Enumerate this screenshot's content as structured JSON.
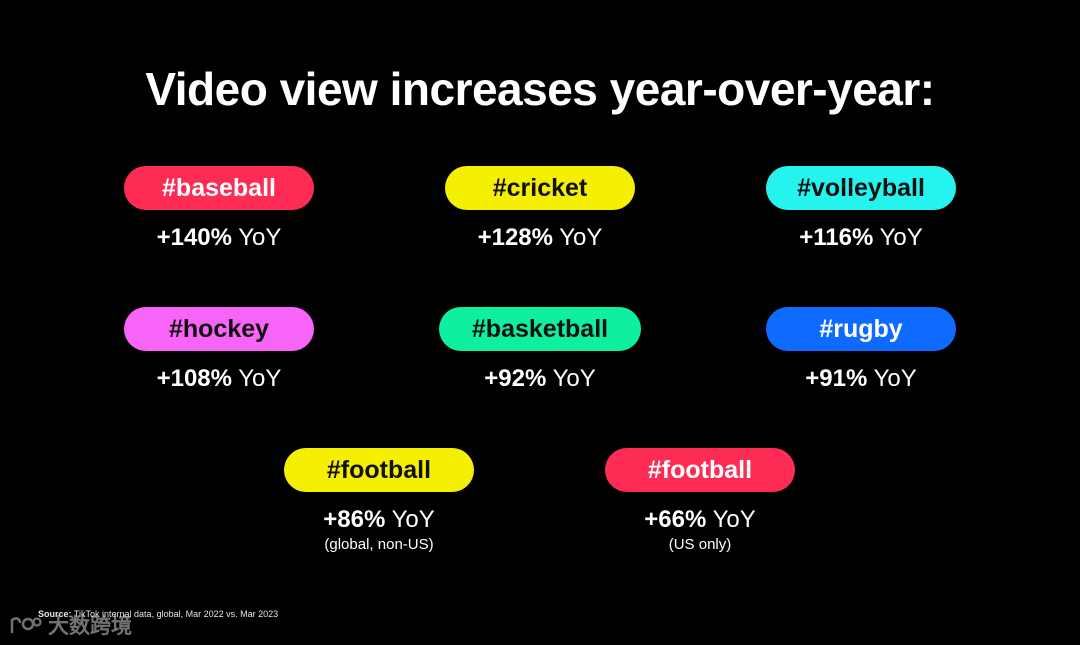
{
  "title": "Video view increases year-over-year:",
  "items": [
    {
      "tag": "#baseball",
      "increase": "+140%",
      "suffix": "YoY",
      "note": "",
      "color": "#fe2c55"
    },
    {
      "tag": "#cricket",
      "increase": "+128%",
      "suffix": "YoY",
      "note": "",
      "color": "#f5f001"
    },
    {
      "tag": "#volleyball",
      "increase": "+116%",
      "suffix": "YoY",
      "note": "",
      "color": "#25f4ee"
    },
    {
      "tag": "#hockey",
      "increase": "+108%",
      "suffix": "YoY",
      "note": "",
      "color": "#f864f8"
    },
    {
      "tag": "#basketball",
      "increase": "+92%",
      "suffix": "YoY",
      "note": "",
      "color": "#0ef0a0"
    },
    {
      "tag": "#rugby",
      "increase": "+91%",
      "suffix": "YoY",
      "note": "",
      "color": "#0f6bff"
    },
    {
      "tag": "#football",
      "increase": "+86%",
      "suffix": "YoY",
      "note": "(global, non-US)",
      "color": "#f5f001"
    },
    {
      "tag": "#football",
      "increase": "+66%",
      "suffix": "YoY",
      "note": "(US only)",
      "color": "#fe2c55"
    }
  ],
  "source": {
    "label": "Source:",
    "text": "TikTok internal data, global, Mar 2022 vs. Mar 2023"
  },
  "watermark": {
    "logo_icon": "watermark-logo-icon",
    "text": "大数跨境"
  }
}
